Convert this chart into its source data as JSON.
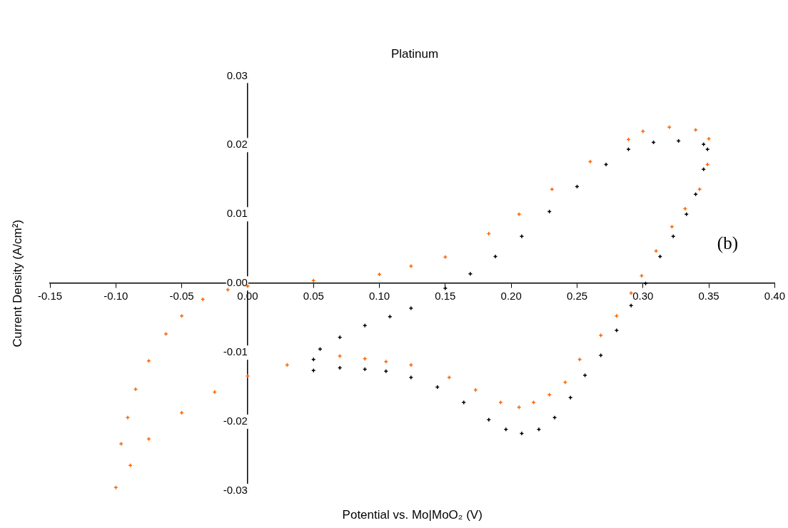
{
  "chart_data": {
    "type": "scatter",
    "title": "Platinum",
    "xlabel": "Potential vs. Mo|MoO₂ (V)",
    "ylabel": "Current Density (A/cm²)",
    "annotations": [
      "(b)"
    ],
    "xlim": [
      -0.15,
      0.4
    ],
    "ylim": [
      -0.03,
      0.03
    ],
    "xticks": [
      {
        "value": -0.15,
        "label": "-0.15"
      },
      {
        "value": -0.1,
        "label": "-0.10"
      },
      {
        "value": -0.05,
        "label": "-0.05"
      },
      {
        "value": 0,
        "label": "0.00"
      },
      {
        "value": 0.05,
        "label": "0.05"
      },
      {
        "value": 0.1,
        "label": "0.10"
      },
      {
        "value": 0.15,
        "label": "0.15"
      },
      {
        "value": 0.2,
        "label": "0.20"
      },
      {
        "value": 0.25,
        "label": "0.25"
      },
      {
        "value": 0.3,
        "label": "0.30"
      },
      {
        "value": 0.35,
        "label": "0.35"
      },
      {
        "value": 0.4,
        "label": "0.40"
      }
    ],
    "yticks": [
      {
        "value": -0.03,
        "label": "-0.03"
      },
      {
        "value": -0.02,
        "label": "-0.02"
      },
      {
        "value": -0.01,
        "label": "-0.01"
      },
      {
        "value": 0,
        "label": "0.00"
      },
      {
        "value": 0.01,
        "label": "0.01"
      },
      {
        "value": 0.02,
        "label": "0.02"
      },
      {
        "value": 0.03,
        "label": "0.03"
      }
    ],
    "grid": false,
    "legend": false,
    "marker": "cross",
    "series": [
      {
        "color": "#ff6600",
        "x": [
          -0.1,
          -0.096,
          -0.091,
          -0.085,
          -0.075,
          -0.062,
          -0.05,
          -0.034,
          -0.015,
          0,
          0.05,
          0.1,
          0.124,
          0.15,
          0.183,
          0.206,
          0.231,
          0.26,
          0.289,
          0.3,
          0.32,
          0.34,
          0.35,
          0.349,
          0.343,
          0.332,
          0.322,
          0.31,
          0.299,
          0.291,
          0.28,
          0.268,
          0.252,
          0.241,
          0.229,
          0.217,
          0.206,
          0.192,
          0.173,
          0.153,
          0.124,
          0.105,
          0.089,
          0.07,
          0.03,
          0,
          -0.025,
          -0.05,
          -0.075,
          -0.089
        ],
        "values": [
          -0.0295,
          -0.0232,
          -0.0194,
          -0.0153,
          -0.0112,
          -0.0073,
          -0.0047,
          -0.0023,
          -0.0009,
          -0.0004,
          0.0004,
          0.0013,
          0.0025,
          0.0038,
          0.0072,
          0.01,
          0.0136,
          0.0176,
          0.0208,
          0.022,
          0.0226,
          0.0222,
          0.0209,
          0.0172,
          0.0136,
          0.0108,
          0.0082,
          0.0047,
          0.0011,
          -0.0014,
          -0.0047,
          -0.0075,
          -0.011,
          -0.0143,
          -0.0161,
          -0.0172,
          -0.0179,
          -0.0172,
          -0.0154,
          -0.0136,
          -0.0118,
          -0.0113,
          -0.0109,
          -0.0105,
          -0.0118,
          -0.0134,
          -0.0157,
          -0.0187,
          -0.0225,
          -0.0263
        ]
      },
      {
        "color": "#000000",
        "x": [
          0.05,
          0.055,
          0.07,
          0.089,
          0.108,
          0.124,
          0.15,
          0.169,
          0.188,
          0.208,
          0.229,
          0.25,
          0.272,
          0.289,
          0.308,
          0.327,
          0.346,
          0.349,
          0.346,
          0.34,
          0.333,
          0.323,
          0.313,
          0.302,
          0.291,
          0.28,
          0.268,
          0.256,
          0.245,
          0.233,
          0.221,
          0.208,
          0.196,
          0.183,
          0.164,
          0.144,
          0.124,
          0.105,
          0.089,
          0.07,
          0.05
        ],
        "values": [
          -0.011,
          -0.0095,
          -0.0078,
          -0.0061,
          -0.0048,
          -0.0036,
          -0.0007,
          0.0014,
          0.0039,
          0.0068,
          0.0104,
          0.014,
          0.0172,
          0.0194,
          0.0204,
          0.0206,
          0.0201,
          0.0194,
          0.0165,
          0.0129,
          0.01,
          0.0068,
          0.0039,
          0,
          -0.0032,
          -0.0068,
          -0.0104,
          -0.0133,
          -0.0165,
          -0.0194,
          -0.0211,
          -0.0217,
          -0.0211,
          -0.0197,
          -0.0172,
          -0.015,
          -0.0136,
          -0.0127,
          -0.0124,
          -0.0122,
          -0.0126
        ]
      }
    ]
  }
}
